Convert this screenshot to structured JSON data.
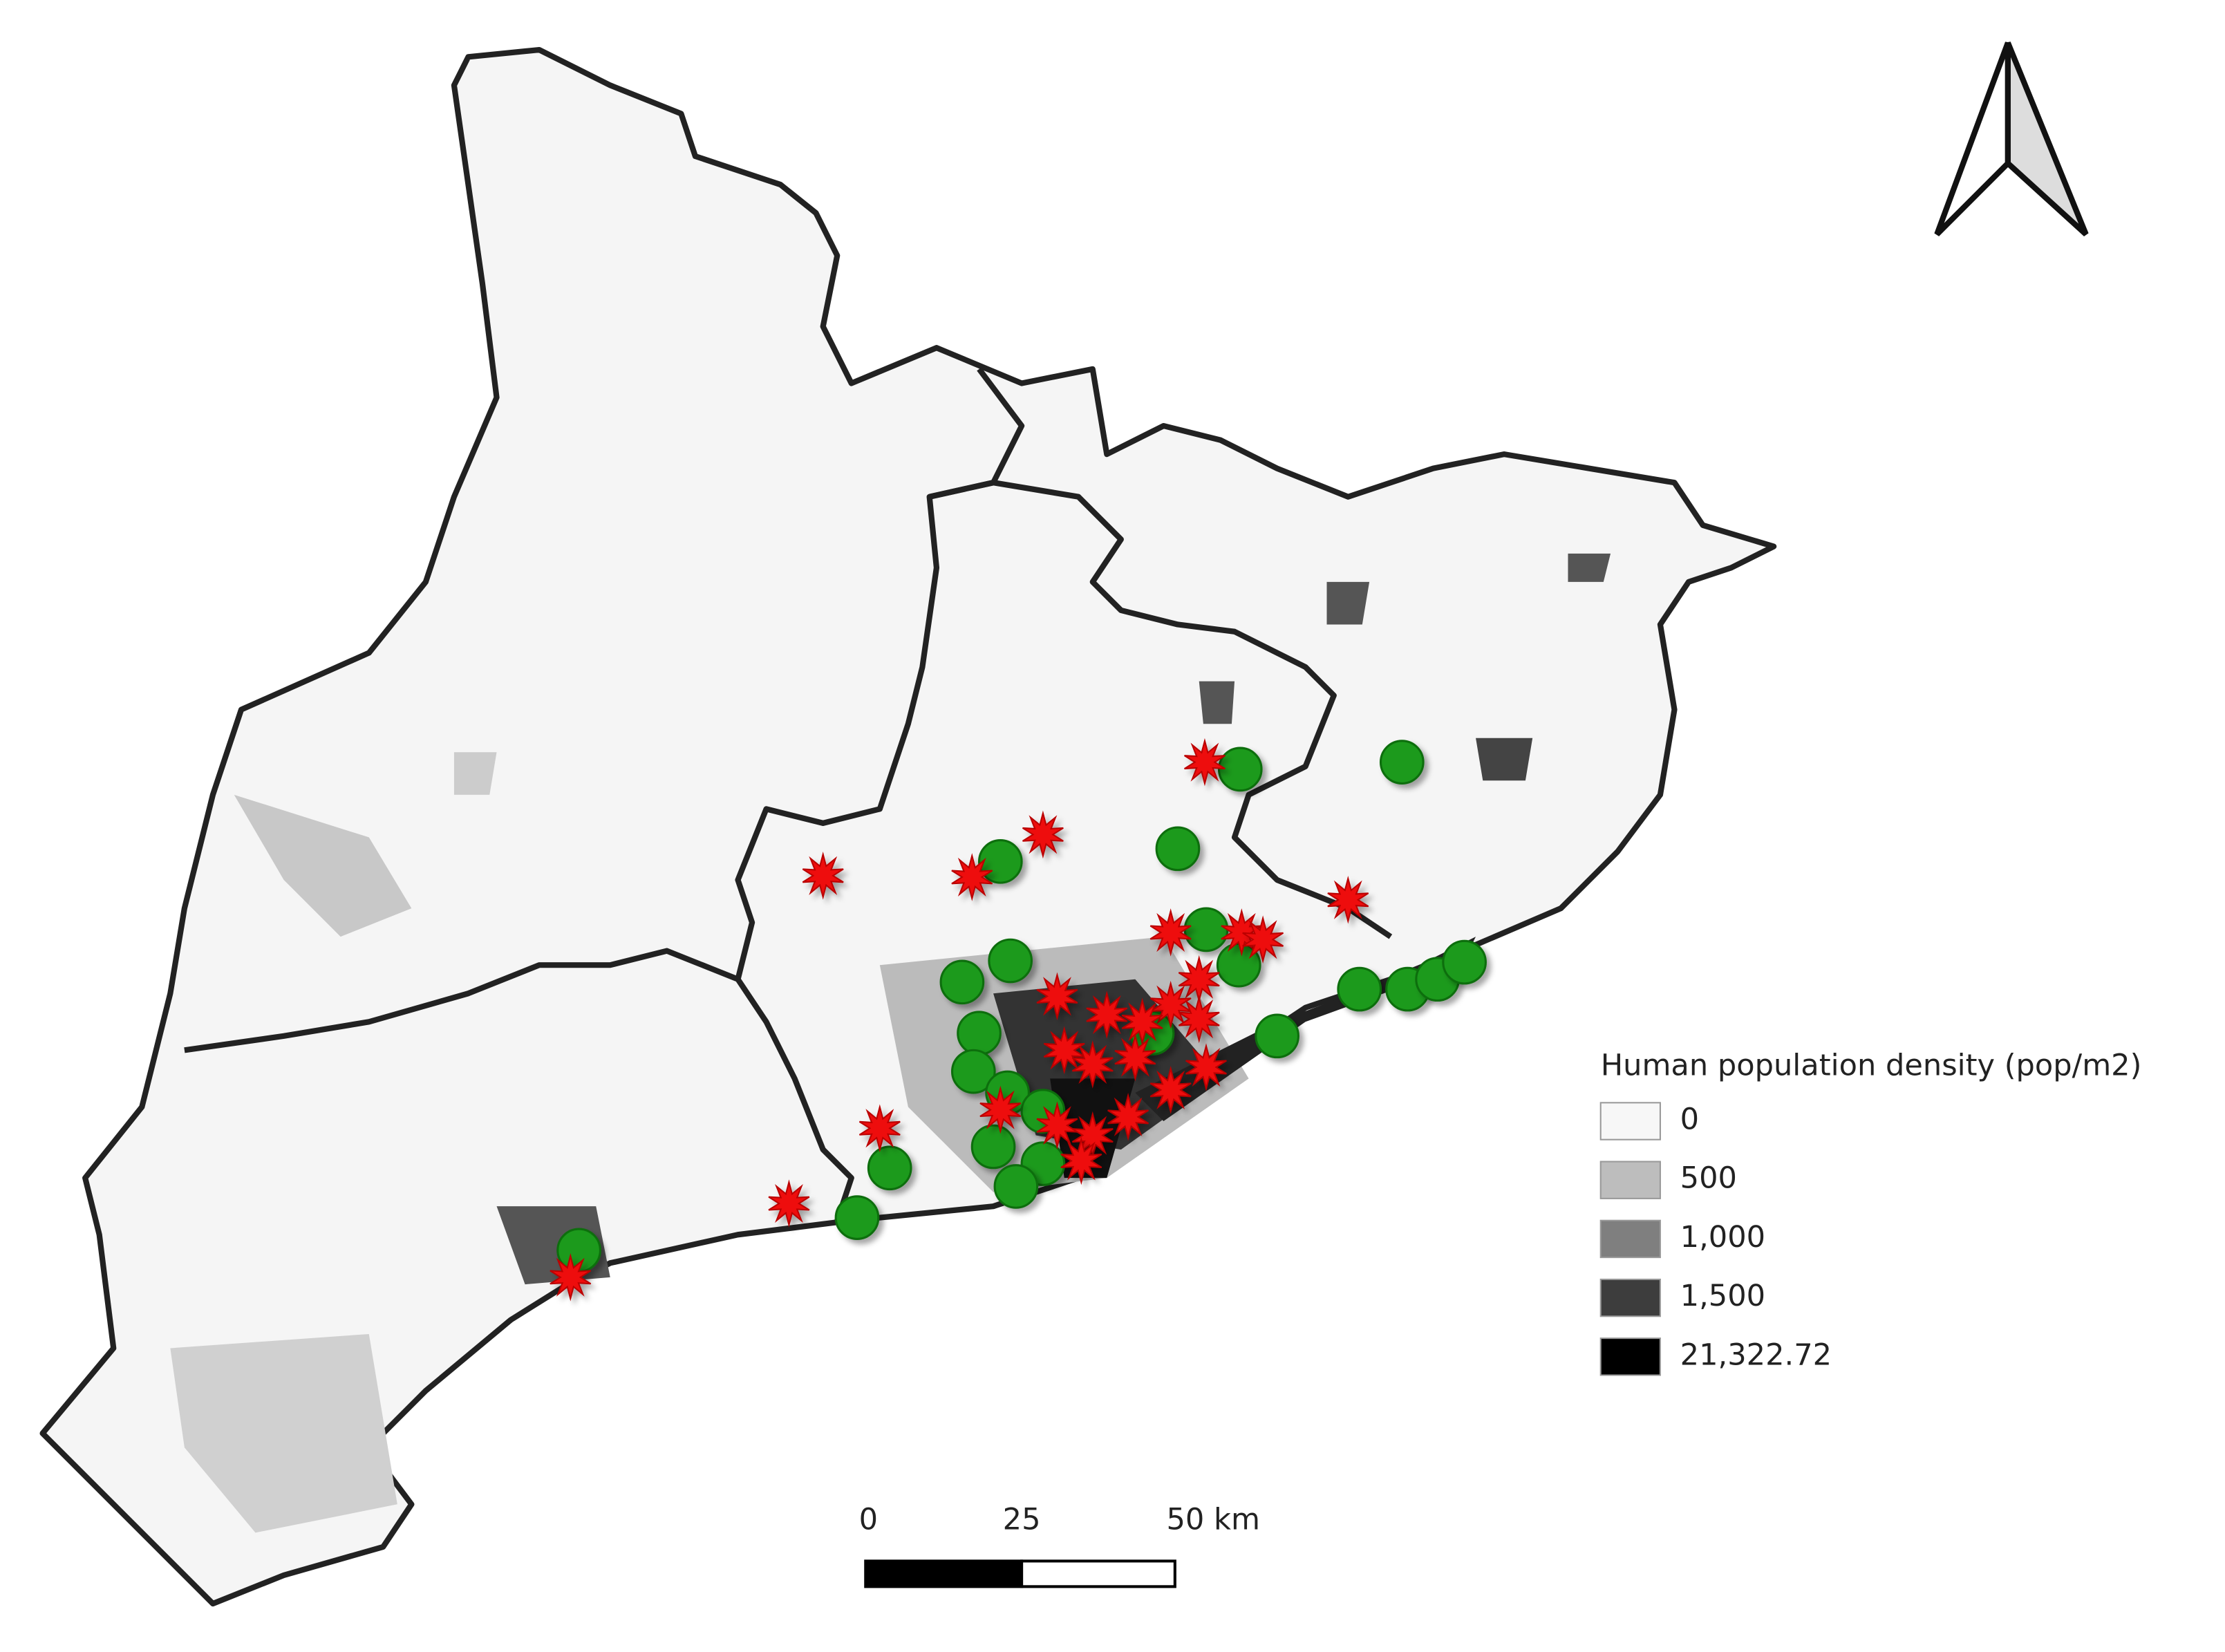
{
  "legend": {
    "title": "Human population density (pop/m2)",
    "items": [
      {
        "label": "0",
        "color": "#f7f7f7"
      },
      {
        "label": "500",
        "color": "#bdbdbd"
      },
      {
        "label": "1,000",
        "color": "#7f7f7f"
      },
      {
        "label": "1,500",
        "color": "#3d3d3d"
      },
      {
        "label": "21,322.72",
        "color": "#000000"
      }
    ]
  },
  "scale_bar": {
    "labels": [
      "0",
      "25",
      "50 km"
    ]
  }
}
